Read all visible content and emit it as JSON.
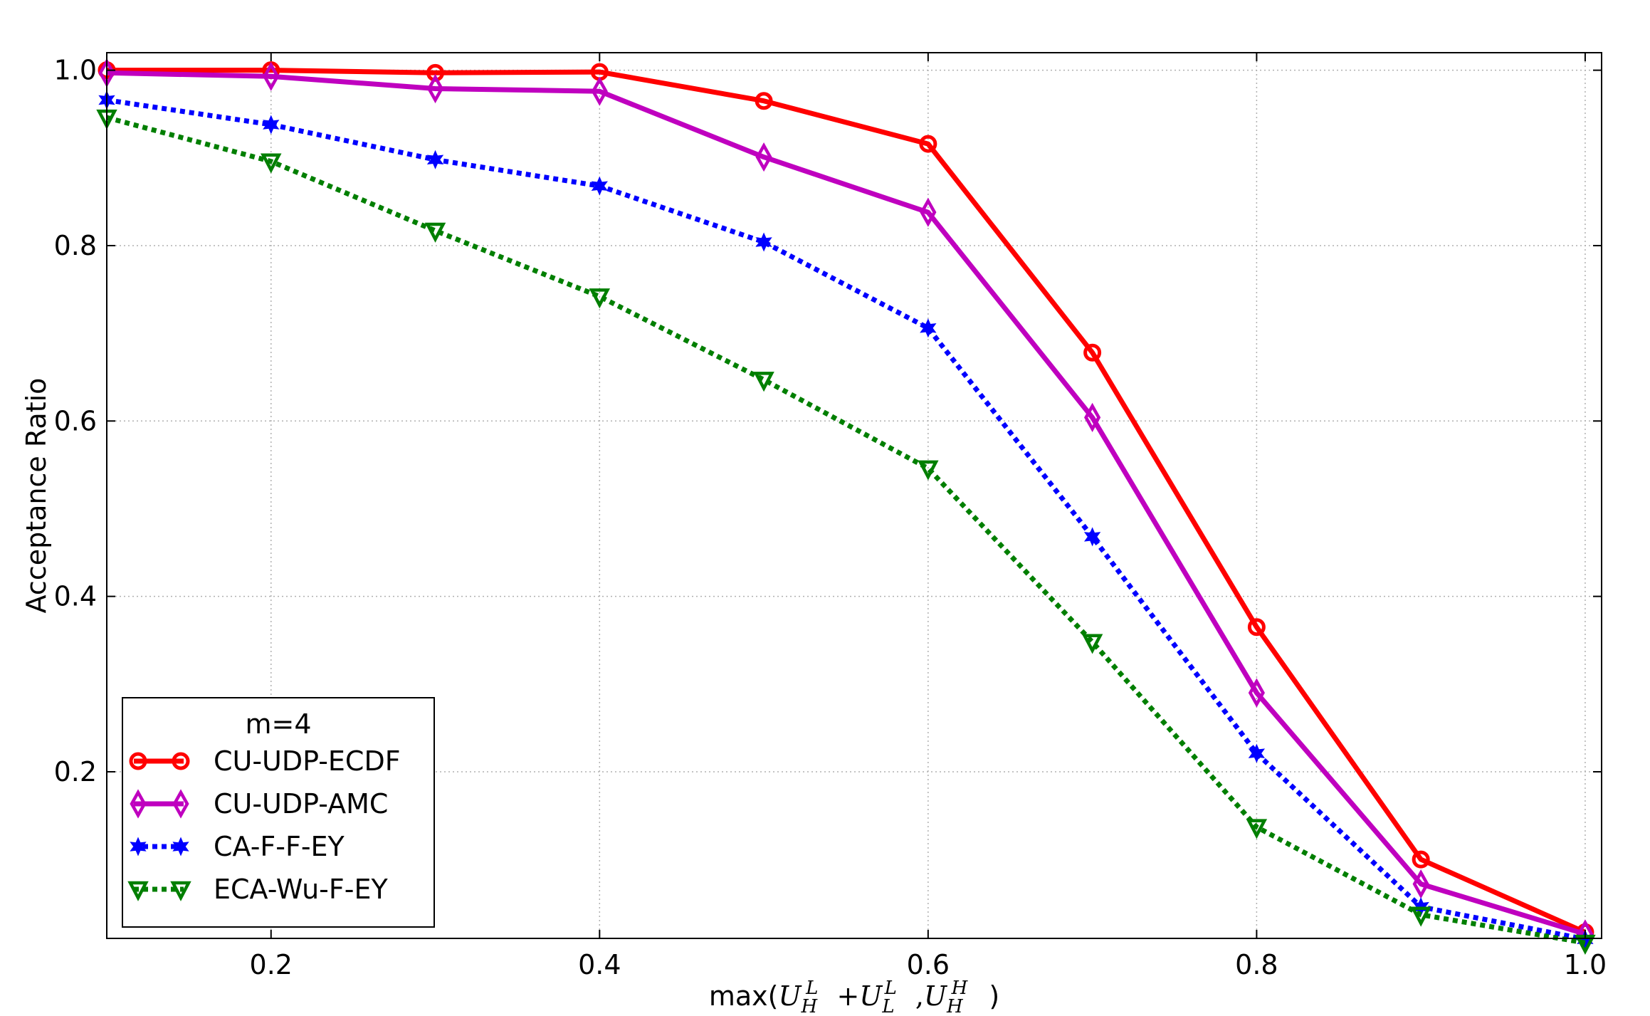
{
  "chart_data": {
    "type": "line",
    "title": "",
    "xlabel": "max(U_H^L + U_L^L, U_H^H)",
    "xlabel_parts": {
      "prefix": "max(",
      "U1": "U",
      "U1_sub": "H",
      "U1_sup": "L",
      "plus": "+",
      "U2": "U",
      "U2_sub": "L",
      "U2_sup": "L",
      "comma": ",",
      "U3": "U",
      "U3_sub": "H",
      "U3_sup": "H",
      "suffix": ")"
    },
    "ylabel": "Acceptance Ratio",
    "xlim": [
      0.1,
      1.01
    ],
    "ylim": [
      0.01,
      1.02
    ],
    "xticks": [
      0.2,
      0.4,
      0.6,
      0.8,
      1.0
    ],
    "xtick_labels": [
      "0.2",
      "0.4",
      "0.6",
      "0.8",
      "1.0"
    ],
    "yticks": [
      0.2,
      0.4,
      0.6,
      0.8,
      1.0
    ],
    "ytick_labels": [
      "0.2",
      "0.4",
      "0.6",
      "0.8",
      "1.0"
    ],
    "grid": true,
    "legend_title": "m=4",
    "legend_position": "lower-left",
    "x": [
      0.1,
      0.2,
      0.3,
      0.4,
      0.5,
      0.6,
      0.7,
      0.8,
      0.9,
      1.0
    ],
    "series": [
      {
        "name": "CU-UDP-ECDF",
        "color": "#ff0000",
        "marker": "circle",
        "linestyle": "solid",
        "values": [
          1.0,
          1.0,
          0.997,
          0.998,
          0.965,
          0.916,
          0.678,
          0.365,
          0.1,
          0.017
        ]
      },
      {
        "name": "CU-UDP-AMC",
        "color": "#bf00bf",
        "marker": "diamond",
        "linestyle": "solid",
        "values": [
          0.997,
          0.993,
          0.979,
          0.976,
          0.901,
          0.838,
          0.604,
          0.29,
          0.072,
          0.015
        ]
      },
      {
        "name": "CA-F-F-EY",
        "color": "#0000ff",
        "marker": "star",
        "linestyle": "dotted",
        "values": [
          0.966,
          0.938,
          0.898,
          0.868,
          0.804,
          0.706,
          0.468,
          0.221,
          0.046,
          0.009
        ]
      },
      {
        "name": "ECA-Wu-F-EY",
        "color": "#007f00",
        "marker": "triangle-down",
        "linestyle": "dotted",
        "values": [
          0.946,
          0.896,
          0.817,
          0.742,
          0.647,
          0.546,
          0.348,
          0.137,
          0.037,
          0.005
        ]
      }
    ]
  }
}
